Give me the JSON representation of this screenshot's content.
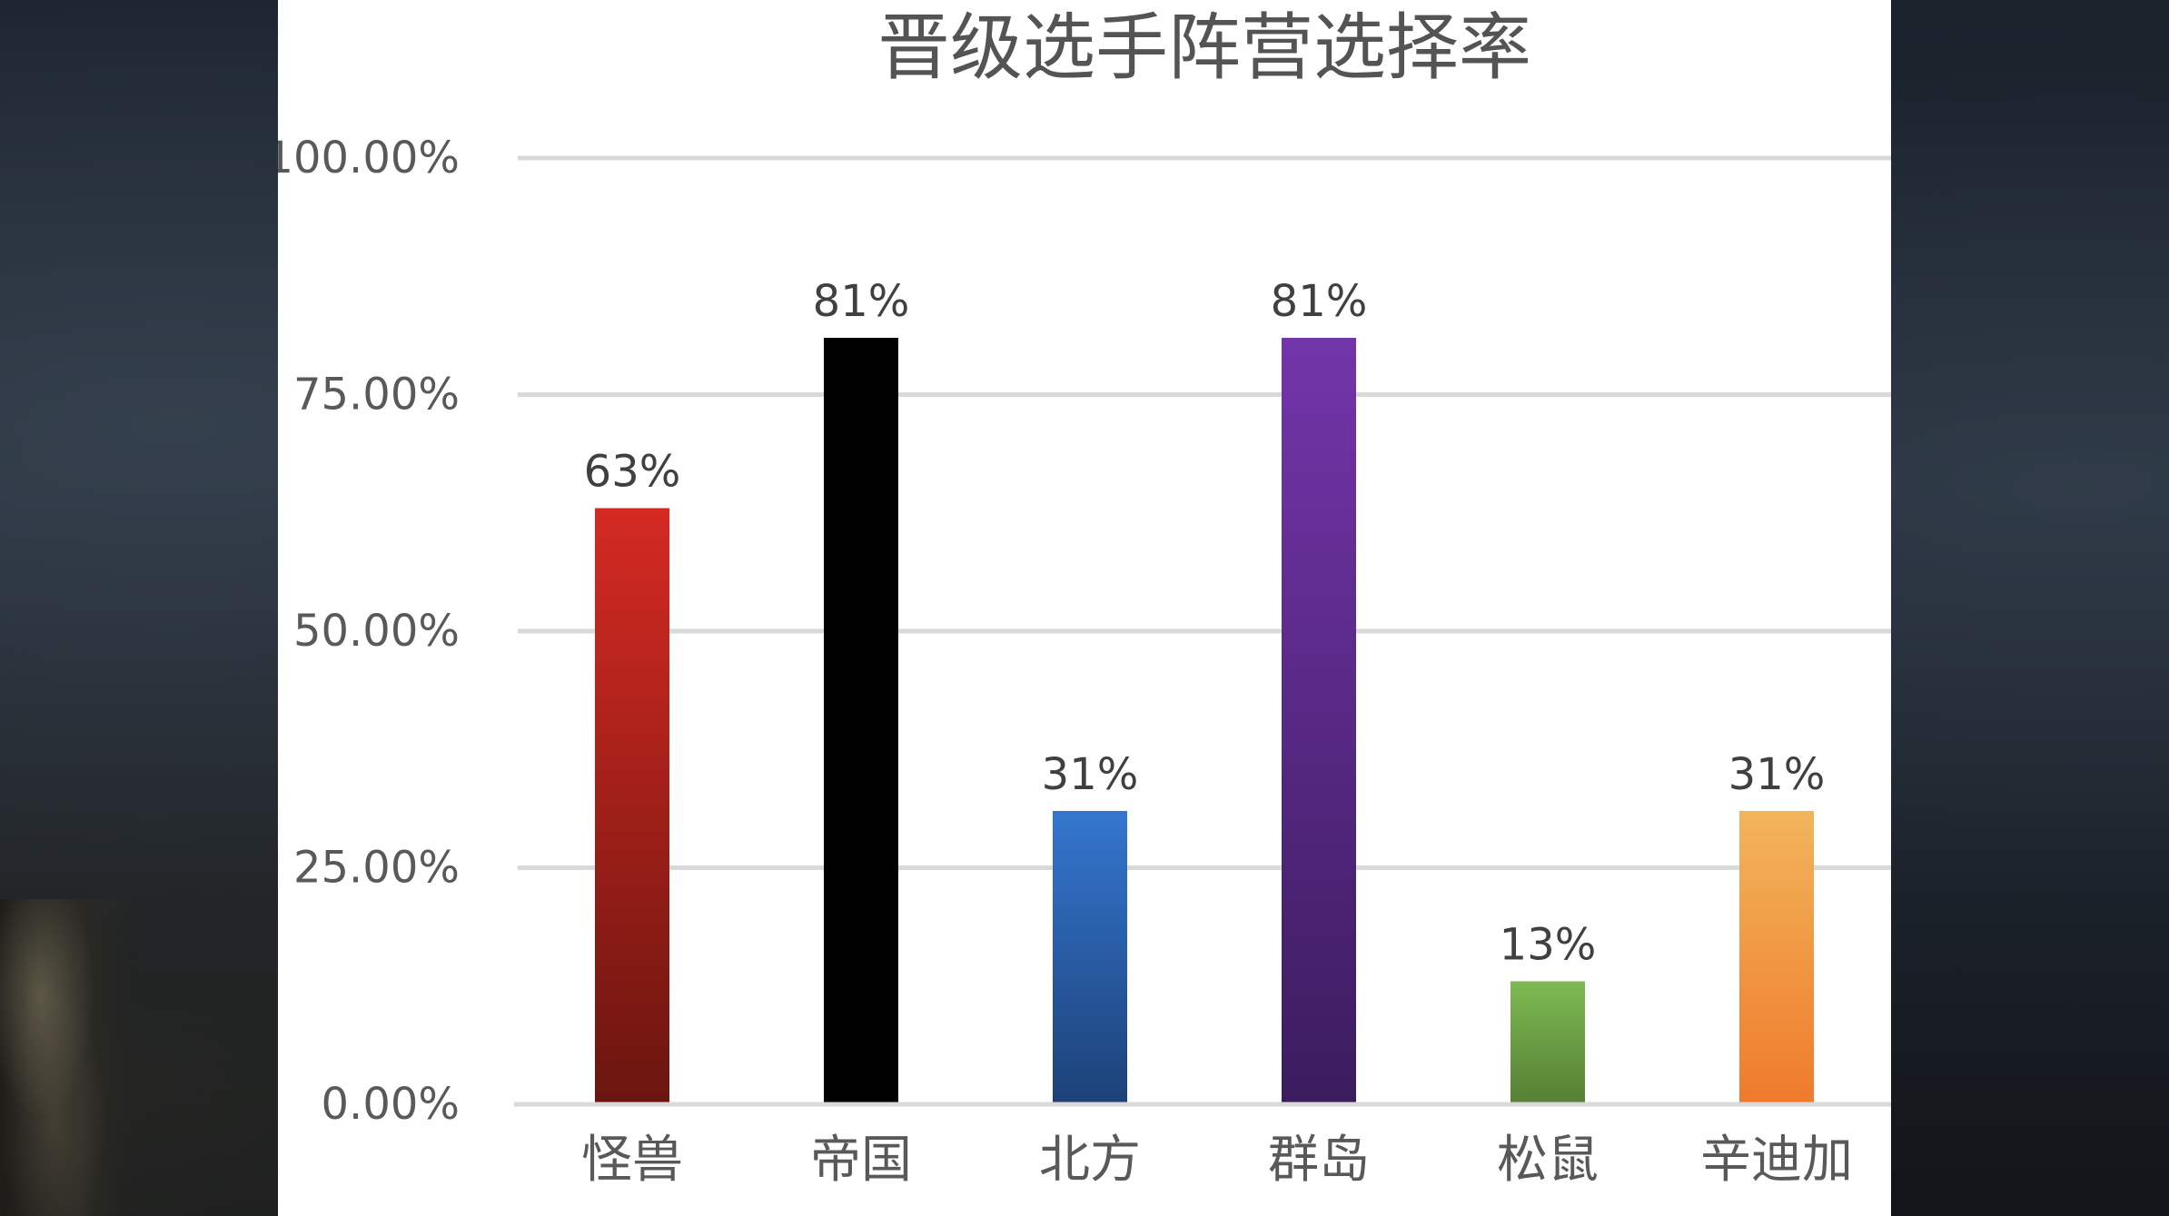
{
  "chart_data": {
    "type": "bar",
    "title": "晋级选手阵营选择率",
    "categories": [
      "怪兽",
      "帝国",
      "北方",
      "群岛",
      "松鼠",
      "辛迪加"
    ],
    "values": [
      0.63,
      0.81,
      0.31,
      0.81,
      0.13,
      0.31
    ],
    "data_labels": [
      "63%",
      "81%",
      "31%",
      "81%",
      "13%",
      "31%"
    ],
    "ylim": [
      0,
      1
    ],
    "y_ticks": [
      0,
      0.25,
      0.5,
      0.75,
      1.0
    ],
    "y_tick_labels": [
      "0.00%",
      "25.00%",
      "50.00%",
      "75.00%",
      "100.00%"
    ],
    "grid": true,
    "legend": "none",
    "bar_colors": [
      [
        "#d42a22",
        "#6b150f"
      ],
      [
        "#000000",
        "#000000"
      ],
      [
        "#3476cf",
        "#1c4177"
      ],
      [
        "#7335aa",
        "#3b1c5e"
      ],
      [
        "#7dba52",
        "#567f34"
      ],
      [
        "#f2b55a",
        "#ef7a2d"
      ]
    ]
  }
}
